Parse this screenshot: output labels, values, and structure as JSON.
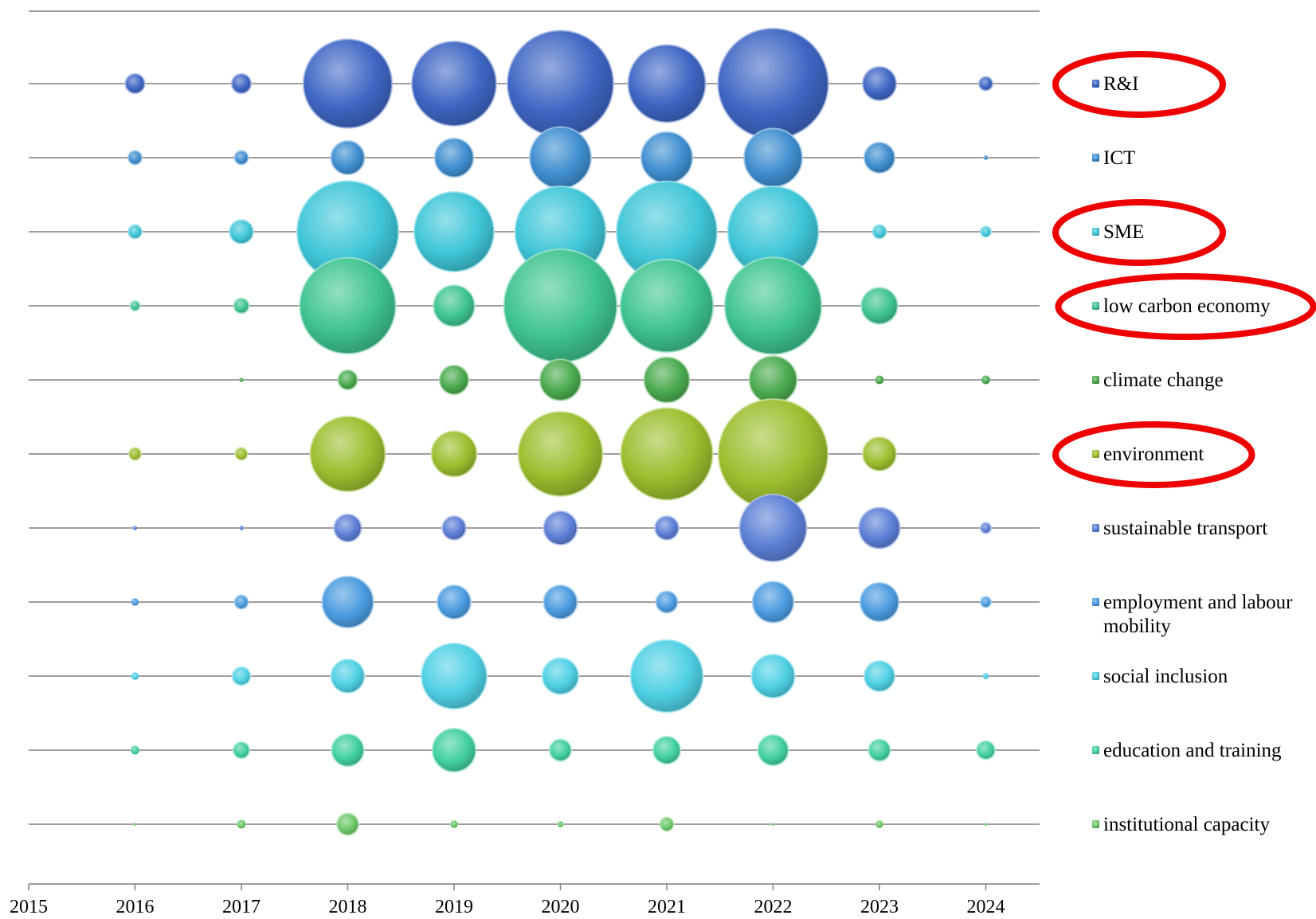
{
  "chart_data": {
    "type": "bubble",
    "title": "",
    "xlabel": "",
    "ylabel": "",
    "xlim": [
      2015,
      2024.5
    ],
    "x_ticks": [
      2015,
      2016,
      2017,
      2018,
      2019,
      2020,
      2021,
      2022,
      2023,
      2024
    ],
    "x": [
      2016,
      2017,
      2018,
      2019,
      2020,
      2021,
      2022,
      2023,
      2024
    ],
    "grid": "horizontal lines per series",
    "legend_position": "right",
    "series": [
      {
        "name": "R&I",
        "color": "#3f66c4",
        "highlighted": true,
        "values": [
          2,
          2,
          42,
          38,
          60,
          32,
          65,
          6,
          1
        ]
      },
      {
        "name": "ICT",
        "color": "#3f8ed0",
        "highlighted": false,
        "values": [
          1,
          1,
          6,
          8,
          20,
          14,
          18,
          5,
          0.1
        ]
      },
      {
        "name": "SME",
        "color": "#3fc6d8",
        "highlighted": true,
        "values": [
          1,
          3,
          55,
          34,
          44,
          54,
          44,
          1,
          0.6
        ]
      },
      {
        "name": "low carbon economy",
        "color": "#3ec490",
        "highlighted": true,
        "values": [
          0.5,
          1.2,
          49,
          9,
          68,
          46,
          50,
          7,
          0
        ]
      },
      {
        "name": "climate change",
        "color": "#4aaa4e",
        "highlighted": false,
        "values": [
          0,
          0.1,
          2,
          4.5,
          9,
          11,
          12,
          0.4,
          0.4
        ]
      },
      {
        "name": "environment",
        "color": "#9cbe2e",
        "highlighted": true,
        "values": [
          0.8,
          0.8,
          30,
          11,
          38,
          45,
          64,
          6,
          0
        ]
      },
      {
        "name": "sustainable transport",
        "color": "#5c7fd6",
        "highlighted": false,
        "values": [
          0.1,
          0.1,
          4,
          3,
          6,
          3,
          24,
          9,
          0.6
        ]
      },
      {
        "name": "employment and labour mobility",
        "color": "#4b9be0",
        "highlighted": false,
        "values": [
          0.3,
          1,
          14,
          6,
          6,
          2.5,
          9,
          8,
          0.6
        ]
      },
      {
        "name": "social inclusion",
        "color": "#4fd0e4",
        "highlighted": false,
        "values": [
          0.3,
          1.8,
          6,
          23,
          7,
          28,
          10,
          5,
          0.2
        ]
      },
      {
        "name": "education and training",
        "color": "#42d0a0",
        "highlighted": false,
        "values": [
          0.4,
          1.4,
          5.5,
          10,
          2.5,
          4,
          5,
          2.5,
          1.8
        ]
      },
      {
        "name": "institutional capacity",
        "color": "#6dc86a",
        "highlighted": false,
        "values": [
          0.05,
          0.4,
          2.5,
          0.3,
          0.2,
          1,
          0.05,
          0.3,
          0.05
        ]
      }
    ]
  }
}
